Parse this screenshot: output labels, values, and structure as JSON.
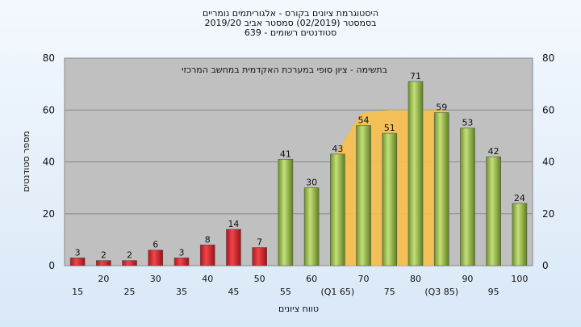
{
  "chart_data": {
    "type": "bar",
    "title_lines": [
      "היסטוגרמת ציונים בקורס - אלגוריתמים נומריים",
      "בסמסטר  (02/2019)  סמסטר אביב 2019/20",
      "סטודנטים רשומים - 639"
    ],
    "xlabel": "טווח ציונים",
    "ylabel": "מספר סטודנטים",
    "annotation": "בתשימה - ציון סופי במערכת האקדמית במחשב המרכזי",
    "ylim": [
      0,
      80
    ],
    "y_ticks": [
      0,
      20,
      40,
      60,
      80
    ],
    "grid": true,
    "categories": [
      "15",
      "20",
      "25",
      "30",
      "35",
      "40",
      "45",
      "50",
      "55",
      "60",
      "65",
      "70",
      "75",
      "80",
      "85",
      "90",
      "95",
      "100"
    ],
    "x_tick_labels": [
      "15",
      "20",
      "25",
      "30",
      "35",
      "40",
      "45",
      "50",
      "55",
      "60",
      "(Q1 65)",
      "70",
      "75",
      "80",
      "(Q3 85)",
      "90",
      "95",
      "100"
    ],
    "values": [
      3,
      2,
      2,
      6,
      3,
      8,
      14,
      7,
      41,
      30,
      43,
      54,
      51,
      71,
      59,
      53,
      42,
      24
    ],
    "bar_colors": {
      "below_55": "#e0242c",
      "from_55": "#9cc04a"
    },
    "quartile_band_color": "#f7c04a"
  }
}
